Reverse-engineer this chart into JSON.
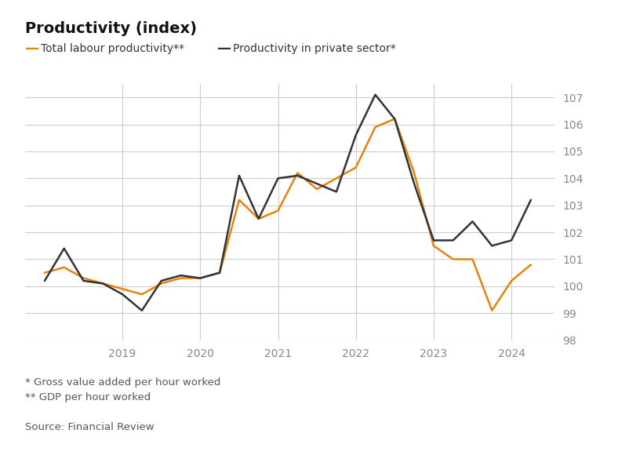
{
  "title": "Productivity (index)",
  "legend": [
    {
      "label": "Total labour productivity**",
      "color": "#E8820C",
      "lw": 1.8
    },
    {
      "label": "Productivity in private sector*",
      "color": "#333333",
      "lw": 1.8
    }
  ],
  "footnotes": "* Gross value added per hour worked\n** GDP per hour worked\n\nSource: Financial Review",
  "ylim": [
    98,
    107.5
  ],
  "yticks": [
    98,
    99,
    100,
    101,
    102,
    103,
    104,
    105,
    106,
    107
  ],
  "background_color": "#ffffff",
  "grid_color": "#cccccc",
  "total_labour": {
    "x": [
      2018.0,
      2018.25,
      2018.5,
      2018.75,
      2019.0,
      2019.25,
      2019.5,
      2019.75,
      2020.0,
      2020.25,
      2020.5,
      2020.75,
      2021.0,
      2021.25,
      2021.5,
      2021.75,
      2022.0,
      2022.25,
      2022.5,
      2022.75,
      2023.0,
      2023.25,
      2023.5,
      2023.75,
      2024.0,
      2024.25
    ],
    "y": [
      100.5,
      100.7,
      100.3,
      100.1,
      99.9,
      99.7,
      100.1,
      100.3,
      100.3,
      100.5,
      103.2,
      102.5,
      102.8,
      104.2,
      103.6,
      104.0,
      104.4,
      105.9,
      106.2,
      104.2,
      101.5,
      101.0,
      101.0,
      99.1,
      100.2,
      100.8
    ]
  },
  "private_sector": {
    "x": [
      2018.0,
      2018.25,
      2018.5,
      2018.75,
      2019.0,
      2019.25,
      2019.5,
      2019.75,
      2020.0,
      2020.25,
      2020.5,
      2020.75,
      2021.0,
      2021.25,
      2021.5,
      2021.75,
      2022.0,
      2022.25,
      2022.5,
      2022.75,
      2023.0,
      2023.25,
      2023.5,
      2023.75,
      2024.0,
      2024.25
    ],
    "y": [
      100.2,
      101.4,
      100.2,
      100.1,
      99.7,
      99.1,
      100.2,
      100.4,
      100.3,
      100.5,
      104.1,
      102.5,
      104.0,
      104.1,
      103.8,
      103.5,
      105.6,
      107.1,
      106.2,
      103.8,
      101.7,
      101.7,
      102.4,
      101.5,
      101.7,
      103.2
    ]
  },
  "xlim": [
    2017.75,
    2024.55
  ],
  "xtick_positions": [
    2019,
    2020,
    2021,
    2022,
    2023,
    2024
  ],
  "xtick_labels": [
    "2019",
    "2020",
    "2021",
    "2022",
    "2023",
    "2024"
  ]
}
